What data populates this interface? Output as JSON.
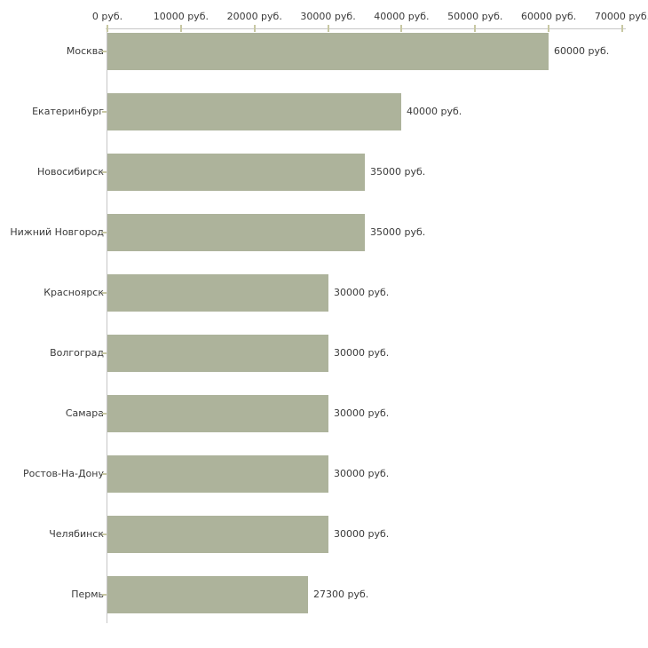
{
  "chart_data": {
    "type": "bar",
    "orientation": "horizontal",
    "title": "",
    "xlabel": "",
    "ylabel": "",
    "unit": "руб.",
    "categories": [
      "Москва",
      "Екатеринбург",
      "Новосибирск",
      "Нижний Новгород",
      "Красноярск",
      "Волгоград",
      "Самара",
      "Ростов-На-Дону",
      "Челябинск",
      "Пермь"
    ],
    "values": [
      60000,
      40000,
      35000,
      35000,
      30000,
      30000,
      30000,
      30000,
      30000,
      27300
    ],
    "value_labels": [
      "60000 руб.",
      "40000 руб.",
      "35000 руб.",
      "35000 руб.",
      "30000 руб.",
      "30000 руб.",
      "30000 руб.",
      "30000 руб.",
      "30000 руб.",
      "27300 руб."
    ],
    "x_ticks": [
      0,
      10000,
      20000,
      30000,
      40000,
      50000,
      60000,
      70000
    ],
    "x_tick_labels": [
      "0 руб.",
      "10000 руб.",
      "20000 руб.",
      "30000 руб.",
      "40000 руб.",
      "50000 руб.",
      "60000 руб.",
      "70000 руб."
    ],
    "xlim": [
      0,
      70000
    ],
    "axis_position": "top",
    "grid": false,
    "legend": "none",
    "colors": {
      "bar_fill": "#adb39b",
      "axis_line": "#c6c6c6",
      "tick_mark": "#c8c8a3",
      "text": "#3a3a3a",
      "background": "#ffffff"
    }
  }
}
